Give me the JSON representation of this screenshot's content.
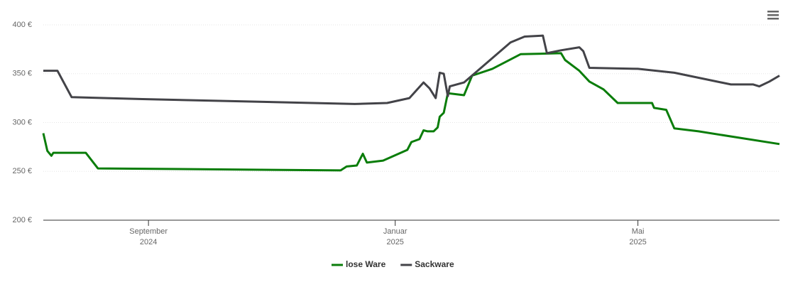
{
  "chart_data": {
    "type": "line",
    "xlim": [
      "2024-07-11",
      "2025-07-10"
    ],
    "xticks": [
      {
        "value": "2024-09-01",
        "label": [
          "September",
          "2024"
        ]
      },
      {
        "value": "2025-01-01",
        "label": [
          "Januar",
          "2025"
        ]
      },
      {
        "value": "2025-05-01",
        "label": [
          "Mai",
          "2025"
        ]
      }
    ],
    "ylim": [
      200,
      400
    ],
    "yticks": [
      {
        "value": 200,
        "label": "200 €"
      },
      {
        "value": 250,
        "label": "250 €"
      },
      {
        "value": 300,
        "label": "300 €"
      },
      {
        "value": 350,
        "label": "350 €"
      },
      {
        "value": 400,
        "label": "400 €"
      }
    ],
    "grid": true,
    "legend": "bottom",
    "series": [
      {
        "name": "lose Ware",
        "color": "#0a7d0a",
        "x": [
          "2024-07-11",
          "2024-07-13",
          "2024-07-15",
          "2024-07-16",
          "2024-08-01",
          "2024-08-07",
          "2024-12-05",
          "2024-12-08",
          "2024-12-13",
          "2024-12-16",
          "2024-12-18",
          "2024-12-26",
          "2025-01-07",
          "2025-01-09",
          "2025-01-13",
          "2025-01-15",
          "2025-01-17",
          "2025-01-20",
          "2025-01-22",
          "2025-01-23",
          "2025-01-25",
          "2025-01-27",
          "2025-02-04",
          "2025-02-08",
          "2025-02-18",
          "2025-03-04",
          "2025-03-24",
          "2025-03-26",
          "2025-04-02",
          "2025-04-07",
          "2025-04-14",
          "2025-04-21",
          "2025-05-08",
          "2025-05-09",
          "2025-05-15",
          "2025-05-19",
          "2025-05-31",
          "2025-07-10"
        ],
        "values": [
          289,
          271,
          266,
          269,
          269,
          253,
          251,
          255,
          256,
          268,
          259,
          261,
          272,
          280,
          283,
          292,
          291,
          291,
          295,
          306,
          310,
          330,
          328,
          348,
          355,
          370,
          371,
          364,
          353,
          342,
          334,
          320,
          320,
          315,
          313,
          294,
          291,
          278
        ]
      },
      {
        "name": "Sackware",
        "color": "#434348",
        "x": [
          "2024-07-11",
          "2024-07-18",
          "2024-07-25",
          "2024-08-29",
          "2024-12-12",
          "2024-12-28",
          "2025-01-08",
          "2025-01-15",
          "2025-01-18",
          "2025-01-21",
          "2025-01-23",
          "2025-01-25",
          "2025-01-27",
          "2025-01-28",
          "2025-02-04",
          "2025-02-13",
          "2025-02-27",
          "2025-03-06",
          "2025-03-15",
          "2025-03-17",
          "2025-03-24",
          "2025-04-02",
          "2025-04-04",
          "2025-04-07",
          "2025-05-01",
          "2025-05-19",
          "2025-06-16",
          "2025-06-27",
          "2025-06-30",
          "2025-07-05",
          "2025-07-10"
        ],
        "values": [
          353,
          353,
          326,
          324,
          319,
          320,
          325,
          341,
          335,
          325,
          351,
          350,
          327,
          337,
          341,
          357,
          382,
          388,
          389,
          371,
          374,
          377,
          373,
          356,
          355,
          351,
          339,
          339,
          337,
          342,
          348
        ]
      }
    ]
  }
}
